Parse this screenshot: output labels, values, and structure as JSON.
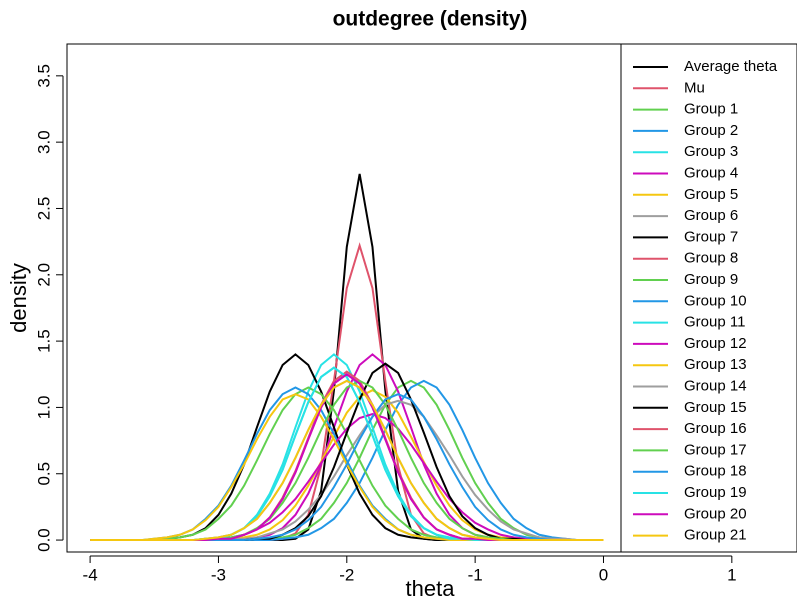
{
  "chart_data": {
    "type": "line",
    "title": "outdegree (density)",
    "x_label": "theta",
    "y_label": "density",
    "xlim": [
      -4.18,
      1.5
    ],
    "ylim": [
      -0.09,
      3.74
    ],
    "xticks": [
      -4,
      -3,
      -2,
      -1,
      0,
      1
    ],
    "yticks": [
      {
        "value": 0,
        "label": "0.0"
      },
      0.5,
      {
        "value": 1,
        "label": "1.0"
      },
      1.5,
      {
        "value": 2,
        "label": "2.0"
      },
      2.5,
      {
        "value": 3,
        "label": "3.0"
      },
      3.5
    ],
    "legend": "topright",
    "x": [
      -4.0,
      -3.9,
      -3.8,
      -3.7,
      -3.6,
      -3.5,
      -3.4,
      -3.3,
      -3.2,
      -3.1,
      -3.0,
      -2.9,
      -2.8,
      -2.7,
      -2.6,
      -2.5,
      -2.4,
      -2.3,
      -2.2,
      -2.1,
      -2.0,
      -1.9,
      -1.8,
      -1.7,
      -1.6,
      -1.5,
      -1.4,
      -1.3,
      -1.2,
      -1.1,
      -1.0,
      -0.9,
      -0.8,
      -0.7,
      -0.6,
      -0.5,
      -0.4,
      -0.3,
      -0.2,
      -0.1,
      0.0
    ],
    "series": [
      {
        "name": "Average theta",
        "color": "#000000",
        "values": [
          0,
          0,
          0,
          0,
          0,
          0,
          0,
          0,
          0,
          0,
          0,
          0,
          0,
          0,
          0,
          0,
          0.01,
          0.08,
          0.37,
          1.13,
          2.21,
          2.76,
          2.21,
          1.13,
          0.37,
          0.08,
          0.01,
          0,
          0,
          0,
          0,
          0,
          0,
          0,
          0,
          0,
          0,
          0,
          0,
          0,
          0
        ]
      },
      {
        "name": "Mu",
        "color": "#DF536B",
        "values": [
          0,
          0,
          0,
          0,
          0,
          0,
          0,
          0,
          0,
          0,
          0,
          0,
          0,
          0,
          0,
          0.01,
          0.05,
          0.19,
          0.56,
          1.2,
          1.9,
          2.22,
          1.9,
          1.2,
          0.56,
          0.19,
          0.05,
          0.01,
          0,
          0,
          0,
          0,
          0,
          0,
          0,
          0,
          0,
          0,
          0,
          0,
          0
        ]
      },
      {
        "name": "Group 1",
        "color": "#61D04F",
        "values": [
          0,
          0,
          0,
          0,
          0,
          0,
          0,
          0,
          0,
          0,
          0,
          0,
          0,
          0,
          0.01,
          0.02,
          0.04,
          0.09,
          0.16,
          0.28,
          0.43,
          0.62,
          0.83,
          1.02,
          1.15,
          1.2,
          1.15,
          1.02,
          0.83,
          0.62,
          0.43,
          0.28,
          0.16,
          0.09,
          0.04,
          0.02,
          0.01,
          0,
          0,
          0,
          0
        ]
      },
      {
        "name": "Group 2",
        "color": "#2297E6",
        "values": [
          0,
          0,
          0,
          0,
          0,
          0,
          0,
          0,
          0,
          0,
          0,
          0,
          0,
          0,
          0,
          0.01,
          0.02,
          0.04,
          0.09,
          0.16,
          0.28,
          0.43,
          0.62,
          0.83,
          1.02,
          1.15,
          1.2,
          1.15,
          1.02,
          0.83,
          0.62,
          0.43,
          0.28,
          0.16,
          0.09,
          0.04,
          0.02,
          0.01,
          0,
          0,
          0
        ]
      },
      {
        "name": "Group 3",
        "color": "#28E2E5",
        "values": [
          0,
          0,
          0,
          0,
          0,
          0,
          0,
          0,
          0,
          0.01,
          0.02,
          0.04,
          0.09,
          0.19,
          0.35,
          0.57,
          0.85,
          1.12,
          1.32,
          1.4,
          1.32,
          1.12,
          0.85,
          0.57,
          0.35,
          0.19,
          0.09,
          0.04,
          0.02,
          0.01,
          0,
          0,
          0,
          0,
          0,
          0,
          0,
          0,
          0,
          0,
          0
        ]
      },
      {
        "name": "Group 4",
        "color": "#CD0BBC",
        "values": [
          0,
          0,
          0,
          0,
          0,
          0,
          0,
          0,
          0,
          0,
          0,
          0,
          0.01,
          0.02,
          0.04,
          0.09,
          0.19,
          0.35,
          0.57,
          0.85,
          1.12,
          1.32,
          1.4,
          1.32,
          1.12,
          0.85,
          0.57,
          0.35,
          0.19,
          0.09,
          0.04,
          0.02,
          0.01,
          0,
          0,
          0,
          0,
          0,
          0,
          0,
          0
        ]
      },
      {
        "name": "Group 5",
        "color": "#F5C710",
        "values": [
          0,
          0,
          0,
          0,
          0,
          0,
          0,
          0,
          0,
          0,
          0,
          0.01,
          0.02,
          0.04,
          0.08,
          0.15,
          0.26,
          0.41,
          0.59,
          0.78,
          0.96,
          1.08,
          1.13,
          1.08,
          0.96,
          0.78,
          0.59,
          0.41,
          0.26,
          0.15,
          0.08,
          0.04,
          0.02,
          0.01,
          0,
          0,
          0,
          0,
          0,
          0,
          0
        ]
      },
      {
        "name": "Group 6",
        "color": "#9E9E9E",
        "values": [
          0,
          0,
          0,
          0,
          0,
          0,
          0,
          0,
          0,
          0,
          0,
          0.01,
          0.01,
          0.02,
          0.05,
          0.08,
          0.14,
          0.23,
          0.34,
          0.48,
          0.64,
          0.79,
          0.93,
          1.02,
          1.05,
          1.02,
          0.93,
          0.79,
          0.64,
          0.48,
          0.34,
          0.23,
          0.14,
          0.08,
          0.05,
          0.02,
          0.01,
          0.01,
          0,
          0,
          0
        ]
      },
      {
        "name": "Group 7",
        "color": "#000000",
        "values": [
          0,
          0,
          0,
          0,
          0,
          0,
          0.01,
          0.02,
          0.04,
          0.09,
          0.19,
          0.35,
          0.57,
          0.85,
          1.12,
          1.32,
          1.4,
          1.32,
          1.12,
          0.85,
          0.57,
          0.35,
          0.19,
          0.09,
          0.04,
          0.02,
          0.01,
          0,
          0,
          0,
          0,
          0,
          0,
          0,
          0,
          0,
          0,
          0,
          0,
          0,
          0
        ]
      },
      {
        "name": "Group 8",
        "color": "#DF536B",
        "values": [
          0,
          0,
          0,
          0,
          0,
          0,
          0,
          0,
          0,
          0,
          0.01,
          0.01,
          0.04,
          0.08,
          0.17,
          0.32,
          0.52,
          0.77,
          1.02,
          1.2,
          1.27,
          1.2,
          1.02,
          0.77,
          0.52,
          0.32,
          0.17,
          0.08,
          0.04,
          0.01,
          0.01,
          0,
          0,
          0,
          0,
          0,
          0,
          0,
          0,
          0,
          0
        ]
      },
      {
        "name": "Group 9",
        "color": "#61D04F",
        "values": [
          0,
          0,
          0,
          0,
          0,
          0,
          0.01,
          0.02,
          0.04,
          0.08,
          0.16,
          0.26,
          0.41,
          0.6,
          0.8,
          0.98,
          1.1,
          1.15,
          1.1,
          0.98,
          0.8,
          0.6,
          0.41,
          0.26,
          0.16,
          0.08,
          0.04,
          0.02,
          0.01,
          0,
          0,
          0,
          0,
          0,
          0,
          0,
          0,
          0,
          0,
          0,
          0
        ]
      },
      {
        "name": "Group 10",
        "color": "#2297E6",
        "values": [
          0,
          0,
          0,
          0,
          0,
          0.01,
          0.02,
          0.04,
          0.08,
          0.16,
          0.26,
          0.41,
          0.6,
          0.8,
          0.98,
          1.1,
          1.15,
          1.1,
          0.98,
          0.8,
          0.6,
          0.41,
          0.26,
          0.16,
          0.08,
          0.04,
          0.02,
          0.01,
          0,
          0,
          0,
          0,
          0,
          0,
          0,
          0,
          0,
          0,
          0,
          0,
          0
        ]
      },
      {
        "name": "Group 11",
        "color": "#28E2E5",
        "values": [
          0,
          0,
          0,
          0,
          0,
          0,
          0,
          0,
          0,
          0.01,
          0.01,
          0.04,
          0.09,
          0.18,
          0.33,
          0.53,
          0.79,
          1.04,
          1.23,
          1.3,
          1.23,
          1.04,
          0.79,
          0.53,
          0.33,
          0.18,
          0.09,
          0.04,
          0.01,
          0.01,
          0,
          0,
          0,
          0,
          0,
          0,
          0,
          0,
          0,
          0,
          0
        ]
      },
      {
        "name": "Group 12",
        "color": "#CD0BBC",
        "values": [
          0,
          0,
          0,
          0,
          0,
          0,
          0,
          0,
          0,
          0,
          0.01,
          0.02,
          0.04,
          0.08,
          0.13,
          0.21,
          0.31,
          0.44,
          0.58,
          0.72,
          0.84,
          0.92,
          0.95,
          0.92,
          0.84,
          0.72,
          0.58,
          0.44,
          0.31,
          0.21,
          0.13,
          0.08,
          0.04,
          0.02,
          0.01,
          0,
          0,
          0,
          0,
          0,
          0
        ]
      },
      {
        "name": "Group 13",
        "color": "#F5C710",
        "values": [
          0,
          0,
          0,
          0,
          0,
          0.01,
          0.02,
          0.04,
          0.08,
          0.15,
          0.25,
          0.4,
          0.57,
          0.76,
          0.93,
          1.06,
          1.1,
          1.06,
          0.93,
          0.76,
          0.57,
          0.4,
          0.25,
          0.15,
          0.08,
          0.04,
          0.02,
          0.01,
          0,
          0,
          0,
          0,
          0,
          0,
          0,
          0,
          0,
          0,
          0,
          0,
          0
        ]
      },
      {
        "name": "Group 14",
        "color": "#9E9E9E",
        "values": [
          0,
          0,
          0,
          0,
          0,
          0,
          0,
          0,
          0,
          0.01,
          0.02,
          0.04,
          0.09,
          0.16,
          0.28,
          0.43,
          0.62,
          0.83,
          1.02,
          1.15,
          1.2,
          1.15,
          1.02,
          0.83,
          0.62,
          0.43,
          0.28,
          0.16,
          0.09,
          0.04,
          0.02,
          0.01,
          0,
          0,
          0,
          0,
          0,
          0,
          0,
          0,
          0
        ]
      },
      {
        "name": "Group 15",
        "color": "#000000",
        "values": [
          0,
          0,
          0,
          0,
          0,
          0,
          0,
          0,
          0,
          0,
          0,
          0,
          0,
          0.01,
          0.01,
          0.04,
          0.09,
          0.18,
          0.33,
          0.55,
          0.81,
          1.06,
          1.26,
          1.33,
          1.26,
          1.06,
          0.81,
          0.55,
          0.33,
          0.18,
          0.09,
          0.04,
          0.01,
          0.01,
          0,
          0,
          0,
          0,
          0,
          0,
          0
        ]
      },
      {
        "name": "Group 16",
        "color": "#DF536B",
        "values": [
          0,
          0,
          0,
          0,
          0,
          0,
          0,
          0,
          0,
          0,
          0.01,
          0.01,
          0.04,
          0.08,
          0.17,
          0.31,
          0.51,
          0.76,
          1.0,
          1.18,
          1.25,
          1.18,
          1.0,
          0.76,
          0.51,
          0.31,
          0.17,
          0.08,
          0.04,
          0.01,
          0.01,
          0,
          0,
          0,
          0,
          0,
          0,
          0,
          0,
          0,
          0
        ]
      },
      {
        "name": "Group 17",
        "color": "#61D04F",
        "values": [
          0,
          0,
          0,
          0,
          0,
          0,
          0,
          0,
          0,
          0,
          0.01,
          0.02,
          0.04,
          0.09,
          0.16,
          0.28,
          0.43,
          0.62,
          0.83,
          1.02,
          1.15,
          1.2,
          1.15,
          1.02,
          0.83,
          0.62,
          0.43,
          0.28,
          0.16,
          0.09,
          0.04,
          0.02,
          0.01,
          0,
          0,
          0,
          0,
          0,
          0,
          0,
          0
        ]
      },
      {
        "name": "Group 18",
        "color": "#2297E6",
        "values": [
          0,
          0,
          0,
          0,
          0,
          0,
          0,
          0,
          0,
          0,
          0,
          0,
          0,
          0.01,
          0.02,
          0.04,
          0.08,
          0.15,
          0.25,
          0.4,
          0.57,
          0.76,
          0.93,
          1.06,
          1.1,
          1.06,
          0.93,
          0.76,
          0.57,
          0.4,
          0.25,
          0.15,
          0.08,
          0.04,
          0.02,
          0.01,
          0,
          0,
          0,
          0,
          0
        ]
      },
      {
        "name": "Group 19",
        "color": "#28E2E5",
        "values": [
          0,
          0,
          0,
          0,
          0,
          0,
          0,
          0,
          0,
          0.01,
          0.01,
          0.04,
          0.09,
          0.18,
          0.33,
          0.53,
          0.79,
          1.04,
          1.23,
          1.3,
          1.23,
          1.04,
          0.79,
          0.53,
          0.33,
          0.18,
          0.09,
          0.04,
          0.01,
          0.01,
          0,
          0,
          0,
          0,
          0,
          0,
          0,
          0,
          0,
          0,
          0
        ]
      },
      {
        "name": "Group 20",
        "color": "#CD0BBC",
        "values": [
          0,
          0,
          0,
          0,
          0,
          0,
          0,
          0,
          0,
          0,
          0.01,
          0.01,
          0.04,
          0.08,
          0.17,
          0.31,
          0.51,
          0.76,
          1.0,
          1.18,
          1.25,
          1.18,
          1.0,
          0.76,
          0.51,
          0.31,
          0.17,
          0.08,
          0.04,
          0.01,
          0.01,
          0,
          0,
          0,
          0,
          0,
          0,
          0,
          0,
          0,
          0
        ]
      },
      {
        "name": "Group 21",
        "color": "#F5C710",
        "values": [
          0,
          0,
          0,
          0,
          0,
          0,
          0,
          0,
          0,
          0.01,
          0.02,
          0.04,
          0.09,
          0.16,
          0.28,
          0.43,
          0.62,
          0.83,
          1.02,
          1.15,
          1.2,
          1.15,
          1.02,
          0.83,
          0.62,
          0.43,
          0.28,
          0.16,
          0.09,
          0.04,
          0.02,
          0.01,
          0,
          0,
          0,
          0,
          0,
          0,
          0,
          0,
          0
        ]
      }
    ]
  }
}
